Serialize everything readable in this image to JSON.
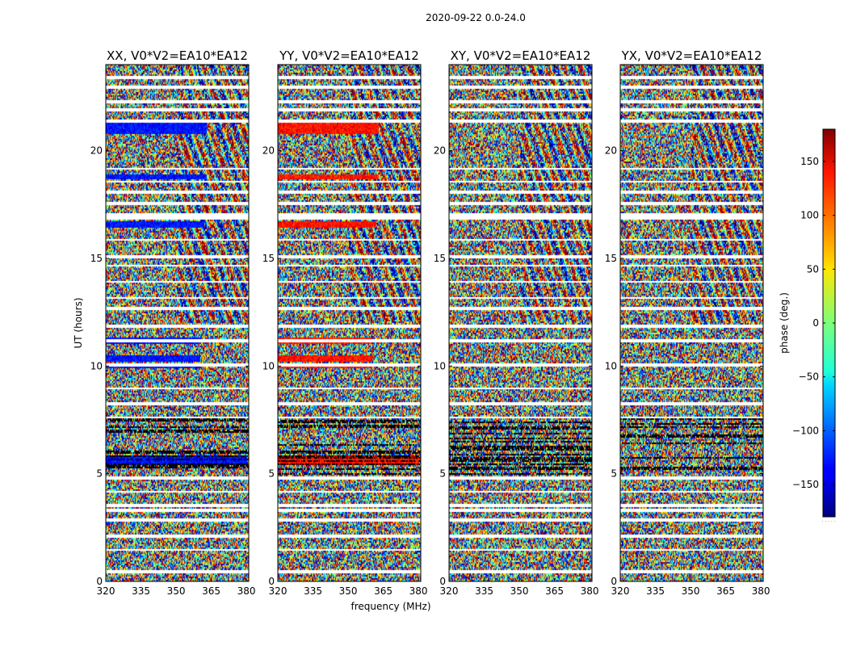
{
  "figure": {
    "suptitle": "2020-09-22 0.0-24.0",
    "xlabel": "frequency (MHz)",
    "ylabel": "UT (hours)"
  },
  "chart_data": {
    "type": "heatmap",
    "title": "2020-09-22 0.0-24.0",
    "xlabel": "frequency (MHz)",
    "ylabel": "UT (hours)",
    "xlim": [
      320,
      381
    ],
    "ylim": [
      0,
      24
    ],
    "xticks": [
      "320",
      "335",
      "350",
      "365",
      "380"
    ],
    "xtick_values": [
      320,
      335,
      350,
      365,
      380
    ],
    "yticks": [
      "0",
      "5",
      "10",
      "15",
      "20"
    ],
    "ytick_values": [
      0,
      5,
      10,
      15,
      20
    ],
    "panels": [
      {
        "title": "XX, V0*V2=EA10*EA12",
        "polarization": "XX",
        "band_tint": "blue"
      },
      {
        "title": "YY, V0*V2=EA10*EA12",
        "polarization": "YY",
        "band_tint": "red"
      },
      {
        "title": "XY, V0*V2=EA10*EA12",
        "polarization": "XY",
        "band_tint": "none"
      },
      {
        "title": "YX, V0*V2=EA10*EA12",
        "polarization": "YX",
        "band_tint": "none"
      }
    ],
    "white_gap_hours": [
      0.5,
      1.5,
      2.15,
      2.9,
      3.35,
      3.55,
      4.2,
      4.85,
      7.65,
      8.3,
      9.0,
      10.1,
      11.2,
      11.9,
      12.7,
      13.2,
      13.95,
      14.7,
      15.1,
      15.9,
      16.9,
      17.05,
      17.6,
      18.1,
      18.6,
      19.2,
      21.4,
      21.95,
      22.3,
      23.0,
      23.45
    ],
    "coherent_band_hours": [
      {
        "from": 20.8,
        "to": 21.35,
        "freq_break": 363
      },
      {
        "from": 18.7,
        "to": 18.95,
        "freq_break": 363
      },
      {
        "from": 16.45,
        "to": 16.75,
        "freq_break": 362
      },
      {
        "from": 11.05,
        "to": 11.35,
        "freq_break": 360
      },
      {
        "from": 10.25,
        "to": 10.55,
        "freq_break": 360
      },
      {
        "from": 9.95,
        "to": 10.15,
        "freq_break": 360
      },
      {
        "from": 5.4,
        "to": 5.9,
        "freq_break": 380
      }
    ],
    "colorbar": {
      "label": "phase (deg.)",
      "range": [
        -180,
        180
      ],
      "ticks": [
        "150",
        "100",
        "50",
        "0",
        "−50",
        "−100",
        "−150"
      ],
      "tick_values": [
        150,
        100,
        50,
        0,
        -50,
        -100,
        -150
      ],
      "colormap": "jet",
      "below_note": "· · · · ·"
    }
  }
}
